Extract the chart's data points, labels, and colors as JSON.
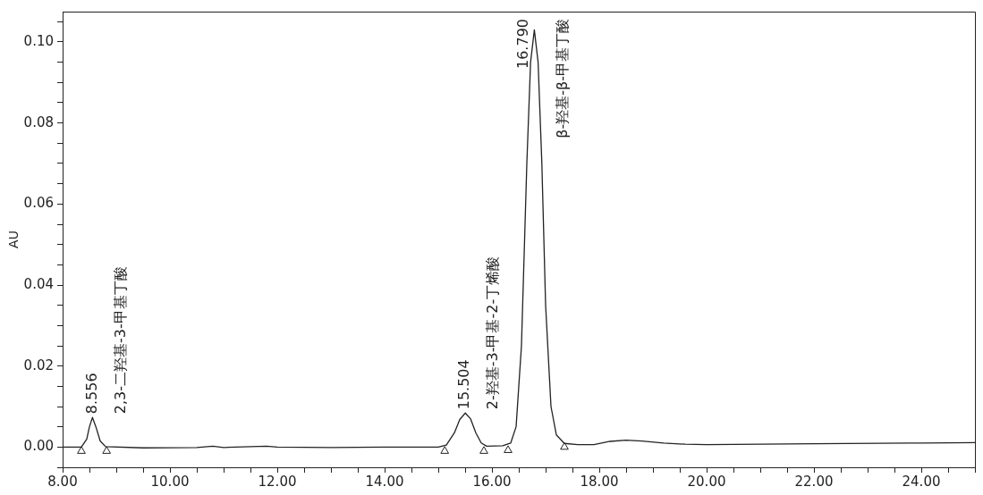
{
  "chart_data": {
    "type": "line",
    "ylabel": "AU",
    "xlim": [
      8,
      25
    ],
    "ylim": [
      -0.005,
      0.1075
    ],
    "xticks": [
      {
        "value": 8,
        "label": "8.00"
      },
      {
        "value": 8.5,
        "label": null
      },
      {
        "value": 9,
        "label": null
      },
      {
        "value": 9.5,
        "label": null
      },
      {
        "value": 10,
        "label": "10.00"
      },
      {
        "value": 10.5,
        "label": null
      },
      {
        "value": 11,
        "label": null
      },
      {
        "value": 11.5,
        "label": null
      },
      {
        "value": 12,
        "label": "12.00"
      },
      {
        "value": 12.5,
        "label": null
      },
      {
        "value": 13,
        "label": null
      },
      {
        "value": 13.5,
        "label": null
      },
      {
        "value": 14,
        "label": "14.00"
      },
      {
        "value": 14.5,
        "label": null
      },
      {
        "value": 15,
        "label": null
      },
      {
        "value": 15.5,
        "label": null
      },
      {
        "value": 16,
        "label": "16.00"
      },
      {
        "value": 16.5,
        "label": null
      },
      {
        "value": 17,
        "label": null
      },
      {
        "value": 17.5,
        "label": null
      },
      {
        "value": 18,
        "label": "18.00"
      },
      {
        "value": 18.5,
        "label": null
      },
      {
        "value": 19,
        "label": null
      },
      {
        "value": 19.5,
        "label": null
      },
      {
        "value": 20,
        "label": "20.00"
      },
      {
        "value": 20.5,
        "label": null
      },
      {
        "value": 21,
        "label": null
      },
      {
        "value": 21.5,
        "label": null
      },
      {
        "value": 22,
        "label": "22.00"
      },
      {
        "value": 22.5,
        "label": null
      },
      {
        "value": 23,
        "label": null
      },
      {
        "value": 23.5,
        "label": null
      },
      {
        "value": 24,
        "label": "24.00"
      },
      {
        "value": 24.5,
        "label": null
      },
      {
        "value": 25,
        "label": null
      }
    ],
    "yticks": [
      {
        "value": -0.005,
        "label": null
      },
      {
        "value": 0,
        "label": "0.00"
      },
      {
        "value": 0.005,
        "label": null
      },
      {
        "value": 0.01,
        "label": null
      },
      {
        "value": 0.015,
        "label": null
      },
      {
        "value": 0.02,
        "label": "0.02"
      },
      {
        "value": 0.025,
        "label": null
      },
      {
        "value": 0.03,
        "label": null
      },
      {
        "value": 0.035,
        "label": null
      },
      {
        "value": 0.04,
        "label": "0.04"
      },
      {
        "value": 0.045,
        "label": null
      },
      {
        "value": 0.05,
        "label": null
      },
      {
        "value": 0.055,
        "label": null
      },
      {
        "value": 0.06,
        "label": "0.06"
      },
      {
        "value": 0.065,
        "label": null
      },
      {
        "value": 0.07,
        "label": null
      },
      {
        "value": 0.075,
        "label": null
      },
      {
        "value": 0.08,
        "label": "0.08"
      },
      {
        "value": 0.085,
        "label": null
      },
      {
        "value": 0.09,
        "label": null
      },
      {
        "value": 0.095,
        "label": null
      },
      {
        "value": 0.1,
        "label": "0.10"
      },
      {
        "value": 0.105,
        "label": null
      }
    ],
    "grid": false,
    "legend": false,
    "series": [
      {
        "color": "#222222",
        "marker": "none",
        "line_style": "solid",
        "x": [
          8,
          8.35,
          8.45,
          8.5,
          8.556,
          8.62,
          8.7,
          8.8,
          9.5,
          10.5,
          10.8,
          11,
          11.8,
          12,
          13,
          14,
          15,
          15.15,
          15.3,
          15.4,
          15.504,
          15.6,
          15.7,
          15.8,
          15.9,
          16.2,
          16.35,
          16.45,
          16.55,
          16.65,
          16.72,
          16.79,
          16.86,
          16.93,
          17,
          17.1,
          17.2,
          17.35,
          17.6,
          17.9,
          18.2,
          18.5,
          18.8,
          19.2,
          19.6,
          20,
          22,
          24,
          25
        ],
        "values": [
          0,
          0,
          0.002,
          0.005,
          0.0073,
          0.005,
          0.0015,
          0.0001,
          -0.0002,
          -0.0001,
          0.0002,
          -0.0001,
          0.0002,
          0,
          -0.0001,
          0,
          0,
          0.0005,
          0.0035,
          0.0068,
          0.0084,
          0.007,
          0.0035,
          0.001,
          0.0002,
          0.0003,
          0.001,
          0.005,
          0.025,
          0.07,
          0.095,
          0.103,
          0.095,
          0.07,
          0.035,
          0.01,
          0.003,
          0.0009,
          0.0006,
          0.0006,
          0.0014,
          0.0017,
          0.0015,
          0.001,
          0.0007,
          0.0006,
          0.0008,
          0.001,
          0.0011
        ]
      },
      {
        "type": "scatter",
        "color": "#222222",
        "marker": "triangle",
        "x": [
          8.35,
          8.82,
          15.12,
          15.85,
          16.3,
          17.35
        ],
        "values": [
          -0.001,
          -0.001,
          -0.001,
          -0.001,
          -0.0008,
          0
        ]
      }
    ],
    "annotations": [
      {
        "text": "8.556",
        "x": 8.556,
        "y": 0.0073
      },
      {
        "text": "2,3-二羟基-3-甲基丁酸",
        "x": 8.556,
        "y": 0.0073
      },
      {
        "text": "15.504",
        "x": 15.504,
        "y": 0.0084
      },
      {
        "text": "2-羟基-3-甲基-2-丁烯酸",
        "x": 15.504,
        "y": 0.0084
      },
      {
        "text": "16.790",
        "x": 16.79,
        "y": 0.103
      },
      {
        "text": "β-羟基-β-甲基丁酸",
        "x": 16.79,
        "y": 0.103
      }
    ]
  }
}
